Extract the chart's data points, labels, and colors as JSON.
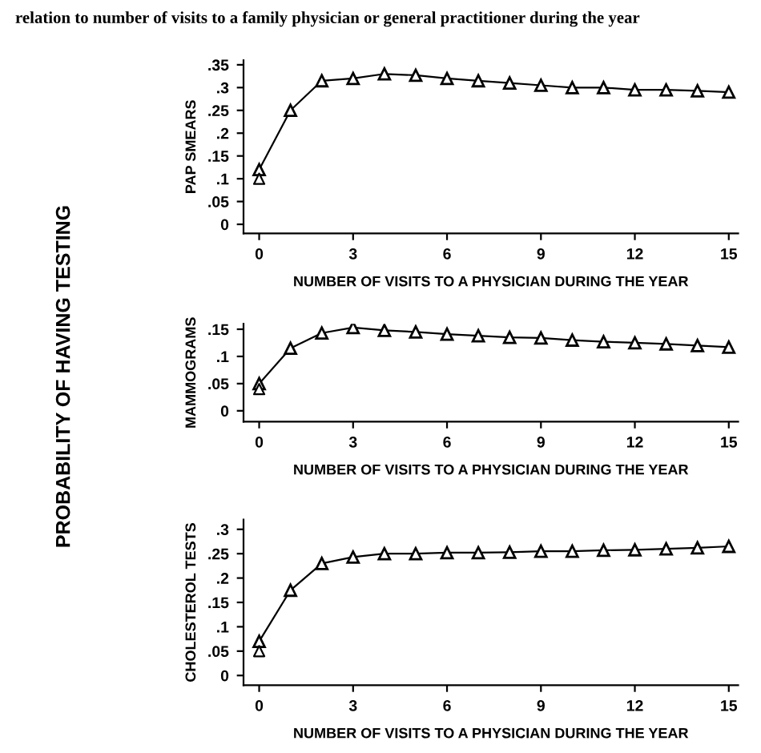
{
  "chart_data": [
    {
      "type": "line",
      "title": "relation to number of visits to a family physician or general practitioner during the year",
      "annotations": [
        "PROBABILITY OF HAVING TESTING"
      ],
      "xlabel": "NUMBER OF VISITS TO A PHYSICIAN DURING THE YEAR",
      "ylabel": "PAP SMEARS",
      "marker": "triangle",
      "line_style": "solid",
      "x": [
        0,
        1,
        2,
        3,
        4,
        5,
        6,
        7,
        8,
        9,
        10,
        11,
        12,
        13,
        14,
        15
      ],
      "series": [
        {
          "color": "#000000",
          "values": [
            0.12,
            0.25,
            0.315,
            0.32,
            0.33,
            0.327,
            0.32,
            0.315,
            0.31,
            0.305,
            0.3,
            0.3,
            0.295,
            0.295,
            0.293,
            0.29
          ]
        },
        {
          "type": "scatter",
          "color": "#000000",
          "values": [
            0.1,
            null,
            null,
            null,
            null,
            null,
            null,
            null,
            null,
            null,
            null,
            null,
            null,
            null,
            null,
            null
          ]
        }
      ],
      "xlim": [
        -0.5,
        15.3
      ],
      "xticks": [
        0,
        3,
        6,
        9,
        12,
        15
      ],
      "ylim": [
        -0.02,
        0.36
      ],
      "yticks": [
        0,
        {
          "value": 0.05,
          "label": ".05"
        },
        {
          "value": 0.1,
          "label": ".1"
        },
        {
          "value": 0.15,
          "label": ".15"
        },
        {
          "value": 0.2,
          "label": ".2"
        },
        {
          "value": 0.25,
          "label": ".25"
        },
        {
          "value": 0.3,
          "label": ".3"
        },
        {
          "value": 0.35,
          "label": ".35"
        }
      ]
    },
    {
      "type": "line",
      "xlabel": "NUMBER OF VISITS TO A PHYSICIAN DURING THE YEAR",
      "ylabel": "MAMMOGRAMS",
      "marker": "triangle",
      "line_style": "solid",
      "x": [
        0,
        1,
        2,
        3,
        4,
        5,
        6,
        7,
        8,
        9,
        10,
        11,
        12,
        13,
        14,
        15
      ],
      "series": [
        {
          "color": "#000000",
          "values": [
            0.05,
            0.115,
            0.143,
            0.153,
            0.148,
            0.145,
            0.141,
            0.138,
            0.135,
            0.134,
            0.13,
            0.127,
            0.125,
            0.123,
            0.12,
            0.117
          ]
        },
        {
          "type": "scatter",
          "color": "#000000",
          "values": [
            0.04,
            null,
            null,
            null,
            null,
            null,
            null,
            null,
            null,
            null,
            null,
            null,
            null,
            null,
            null,
            null
          ]
        }
      ],
      "xlim": [
        -0.5,
        15.3
      ],
      "xticks": [
        0,
        3,
        6,
        9,
        12,
        15
      ],
      "ylim": [
        -0.02,
        0.16
      ],
      "yticks": [
        0,
        {
          "value": 0.05,
          "label": ".05"
        },
        {
          "value": 0.1,
          "label": ".1"
        },
        {
          "value": 0.15,
          "label": ".15"
        }
      ]
    },
    {
      "type": "line",
      "xlabel": "NUMBER OF VISITS TO A PHYSICIAN DURING THE YEAR",
      "ylabel": "CHOLESTEROL TESTS",
      "marker": "triangle",
      "line_style": "solid",
      "x": [
        0,
        1,
        2,
        3,
        4,
        5,
        6,
        7,
        8,
        9,
        10,
        11,
        12,
        13,
        14,
        15
      ],
      "series": [
        {
          "color": "#000000",
          "values": [
            0.07,
            0.175,
            0.23,
            0.243,
            0.25,
            0.25,
            0.252,
            0.252,
            0.253,
            0.255,
            0.255,
            0.257,
            0.258,
            0.26,
            0.262,
            0.265
          ]
        },
        {
          "type": "scatter",
          "color": "#000000",
          "values": [
            0.05,
            null,
            null,
            null,
            null,
            null,
            null,
            null,
            null,
            null,
            null,
            null,
            null,
            null,
            null,
            null
          ]
        }
      ],
      "xlim": [
        -0.5,
        15.3
      ],
      "xticks": [
        0,
        3,
        6,
        9,
        12,
        15
      ],
      "ylim": [
        -0.02,
        0.32
      ],
      "yticks": [
        0,
        {
          "value": 0.05,
          "label": ".05"
        },
        {
          "value": 0.1,
          "label": ".1"
        },
        {
          "value": 0.15,
          "label": ".15"
        },
        {
          "value": 0.2,
          "label": ".2"
        },
        {
          "value": 0.25,
          "label": ".25"
        },
        {
          "value": 0.3,
          "label": ".3"
        }
      ]
    }
  ]
}
